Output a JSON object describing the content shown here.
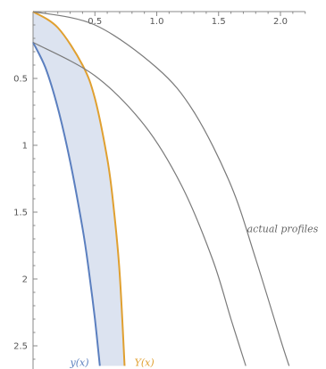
{
  "chart_data": {
    "type": "line",
    "xlim": [
      0,
      2.2
    ],
    "ylim": [
      0,
      2.65
    ],
    "y_axis_direction": "down",
    "x_axis_position": "top",
    "x_ticks": [
      {
        "value": 0.5,
        "label": "0.5"
      },
      {
        "value": 1.0,
        "label": "1.0"
      },
      {
        "value": 1.5,
        "label": "1.5"
      },
      {
        "value": 2.0,
        "label": "2.0"
      }
    ],
    "y_ticks": [
      {
        "value": 0.5,
        "label": "0.5"
      },
      {
        "value": 1.0,
        "label": "1"
      },
      {
        "value": 1.5,
        "label": "1.5"
      },
      {
        "value": 2.0,
        "label": "2"
      },
      {
        "value": 2.5,
        "label": "2.5"
      }
    ],
    "grid": false,
    "band": {
      "between": [
        "y(x)",
        "Y(x)"
      ],
      "color": "#dce3f0"
    },
    "series": [
      {
        "name": "y(x)",
        "color": "#5b7fbf",
        "points": [
          [
            0.0,
            0.23
          ],
          [
            0.1,
            0.42
          ],
          [
            0.2,
            0.72
          ],
          [
            0.3,
            1.12
          ],
          [
            0.4,
            1.62
          ],
          [
            0.45,
            1.93
          ],
          [
            0.5,
            2.3
          ],
          [
            0.54,
            2.65
          ]
        ]
      },
      {
        "name": "Y(x)",
        "color": "#e0a030",
        "points": [
          [
            0.0,
            0.0
          ],
          [
            0.2,
            0.12
          ],
          [
            0.4,
            0.4
          ],
          [
            0.5,
            0.65
          ],
          [
            0.6,
            1.1
          ],
          [
            0.65,
            1.45
          ],
          [
            0.7,
            1.95
          ],
          [
            0.74,
            2.65
          ]
        ]
      },
      {
        "name": "",
        "color": "#7a7a7a",
        "points": [
          [
            0.0,
            0.0
          ],
          [
            0.5,
            0.1
          ],
          [
            1.0,
            0.42
          ],
          [
            1.3,
            0.75
          ],
          [
            1.6,
            1.3
          ],
          [
            1.8,
            1.85
          ],
          [
            2.0,
            2.45
          ],
          [
            2.07,
            2.65
          ]
        ]
      },
      {
        "name": "",
        "color": "#7a7a7a",
        "points": [
          [
            0.0,
            0.23
          ],
          [
            0.5,
            0.48
          ],
          [
            0.9,
            0.85
          ],
          [
            1.2,
            1.3
          ],
          [
            1.45,
            1.85
          ],
          [
            1.6,
            2.3
          ],
          [
            1.72,
            2.65
          ]
        ]
      }
    ],
    "annotations": [
      {
        "text": "y(x)",
        "x": 0.3,
        "y": 2.65,
        "color": "#5b7fbf"
      },
      {
        "text": "Y(x)",
        "x": 0.82,
        "y": 2.65,
        "color": "#e0a030"
      },
      {
        "text": "actual profiles",
        "x": 1.73,
        "y": 1.65,
        "color": "#666666"
      }
    ]
  }
}
